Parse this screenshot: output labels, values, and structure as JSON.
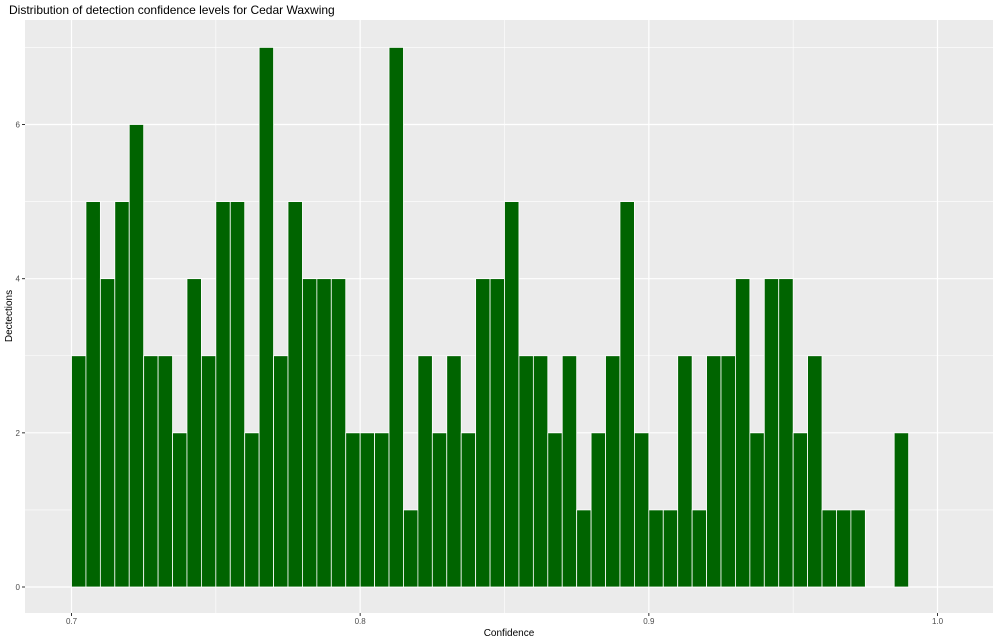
{
  "chart_data": {
    "type": "bar",
    "title": "Distribution of detection confidence levels for Cedar Waxwing",
    "xlabel": "Confidence",
    "ylabel": "Dectections",
    "xlim": [
      0.69,
      1.02
    ],
    "ylim": [
      0,
      7.5
    ],
    "x_ticks": [
      "0.7",
      "0.8",
      "0.9",
      "1.0"
    ],
    "y_ticks": [
      "0",
      "2",
      "4",
      "6"
    ],
    "bin_width": 0.005,
    "bar_color": "#006400",
    "bar_outline": "#ffffff",
    "panel_color": "#ebebeb",
    "grid_color": "#ffffff",
    "grid": true,
    "x": [
      0.7025,
      0.7075,
      0.7125,
      0.7175,
      0.7225,
      0.7275,
      0.7325,
      0.7375,
      0.7425,
      0.7475,
      0.7525,
      0.7575,
      0.7625,
      0.7675,
      0.7725,
      0.7775,
      0.7825,
      0.7875,
      0.7925,
      0.7975,
      0.8025,
      0.8075,
      0.8125,
      0.8175,
      0.8225,
      0.8275,
      0.8325,
      0.8375,
      0.8425,
      0.8475,
      0.8525,
      0.8575,
      0.8625,
      0.8675,
      0.8725,
      0.8775,
      0.8825,
      0.8875,
      0.8925,
      0.8975,
      0.9025,
      0.9075,
      0.9125,
      0.9175,
      0.9225,
      0.9275,
      0.9325,
      0.9375,
      0.9425,
      0.9475,
      0.9525,
      0.9575,
      0.9625,
      0.9675,
      0.9725,
      0.9775,
      0.9825,
      0.9875
    ],
    "values": [
      3,
      5,
      4,
      5,
      6,
      3,
      3,
      2,
      4,
      3,
      5,
      5,
      2,
      7,
      3,
      5,
      4,
      4,
      4,
      2,
      2,
      2,
      7,
      1,
      3,
      2,
      3,
      2,
      4,
      4,
      5,
      3,
      3,
      2,
      3,
      1,
      2,
      3,
      5,
      2,
      1,
      1,
      3,
      1,
      3,
      3,
      4,
      2,
      4,
      4,
      2,
      3,
      1,
      1,
      1,
      0,
      0,
      2
    ]
  }
}
